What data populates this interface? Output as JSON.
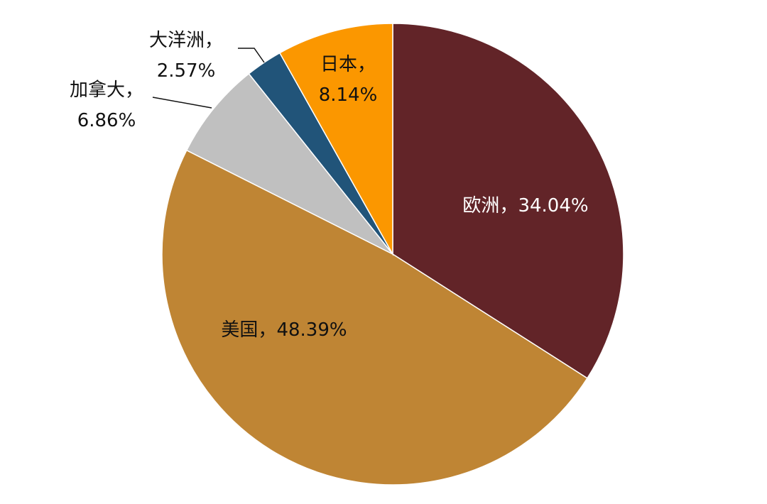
{
  "chart_data": {
    "type": "pie",
    "categories": [
      "欧洲",
      "美国",
      "加拿大",
      "大洋洲",
      "日本"
    ],
    "values": [
      34.04,
      48.39,
      6.86,
      2.57,
      8.14
    ],
    "value_labels": [
      "34.04%",
      "48.39%",
      "6.86%",
      "2.57%",
      "8.14%"
    ],
    "label_separator": "，",
    "colors": [
      "#622428",
      "#bf8534",
      "#c0c0c0",
      "#215479",
      "#fb9700"
    ]
  }
}
